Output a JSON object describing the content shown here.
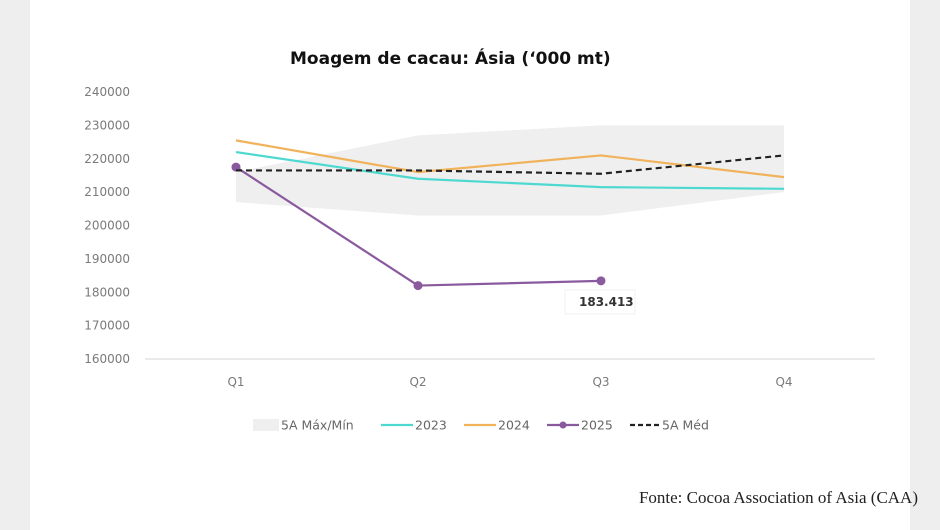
{
  "chart_data": {
    "type": "line",
    "title": "Moagem de cacau: Ásia (‘000 mt)",
    "categories": [
      "Q1",
      "Q2",
      "Q3",
      "Q4"
    ],
    "ylim": [
      160000,
      240000
    ],
    "yticks": [
      240000,
      230000,
      220000,
      210000,
      200000,
      190000,
      180000,
      170000,
      160000
    ],
    "grid": false,
    "legend_position": "bottom",
    "band": {
      "name": "5A Máx/Mín",
      "color": "#efefef",
      "max": [
        216000,
        227000,
        230000,
        230000
      ],
      "min": [
        207000,
        203000,
        203000,
        210000
      ]
    },
    "series": [
      {
        "name": "2023",
        "color": "#4dd9d0",
        "style": "solid",
        "markers": false,
        "values": [
          222000,
          214000,
          211500,
          211000
        ]
      },
      {
        "name": "2024",
        "color": "#f0b25a",
        "style": "solid",
        "markers": false,
        "values": [
          225500,
          216000,
          221000,
          214500
        ]
      },
      {
        "name": "2025",
        "color": "#8a5a9e",
        "style": "solid",
        "markers": true,
        "values": [
          217500,
          182000,
          183413,
          null
        ]
      },
      {
        "name": "5A Méd",
        "color": "#222222",
        "style": "dashed",
        "markers": false,
        "values": [
          216500,
          216500,
          215500,
          221000
        ]
      }
    ],
    "data_labels": [
      {
        "series": "2025",
        "category": "Q3",
        "text": "183.413"
      }
    ]
  },
  "source": "Fonte: Cocoa Association of Asia (CAA)"
}
